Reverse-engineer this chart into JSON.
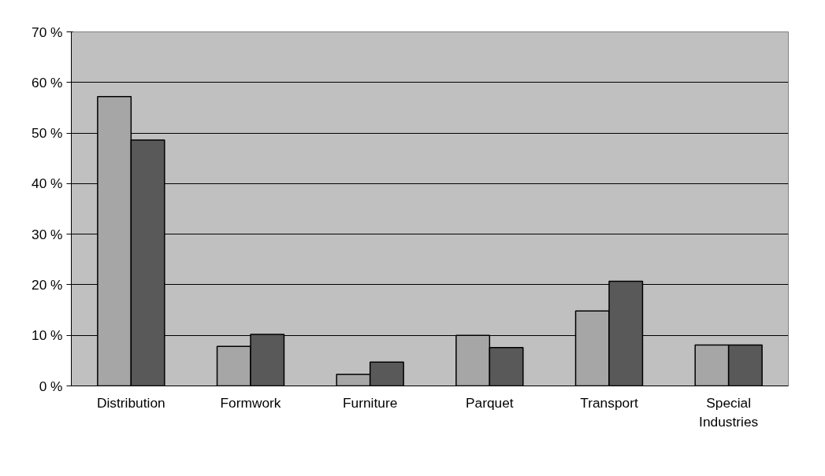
{
  "chart_data": {
    "type": "bar",
    "categories": [
      "Distribution",
      "Formwork",
      "Furniture",
      "Parquet",
      "Transport",
      "Special Industries"
    ],
    "series": [
      {
        "color": "#a6a6a6",
        "values": [
          57.2,
          7.8,
          2.3,
          10.0,
          14.8,
          8.1
        ]
      },
      {
        "color": "#595959",
        "values": [
          48.6,
          10.2,
          4.7,
          7.6,
          20.7,
          8.1
        ]
      }
    ],
    "ylim": [
      0,
      70
    ],
    "yticks": [
      {
        "value": 0,
        "label": "0 %"
      },
      {
        "value": 10,
        "label": "10 %"
      },
      {
        "value": 20,
        "label": "20 %"
      },
      {
        "value": 30,
        "label": "30 %"
      },
      {
        "value": 40,
        "label": "40 %"
      },
      {
        "value": 50,
        "label": "50 %"
      },
      {
        "value": 60,
        "label": "60 %"
      },
      {
        "value": 70,
        "label": "70 %"
      }
    ],
    "grid": "y"
  }
}
